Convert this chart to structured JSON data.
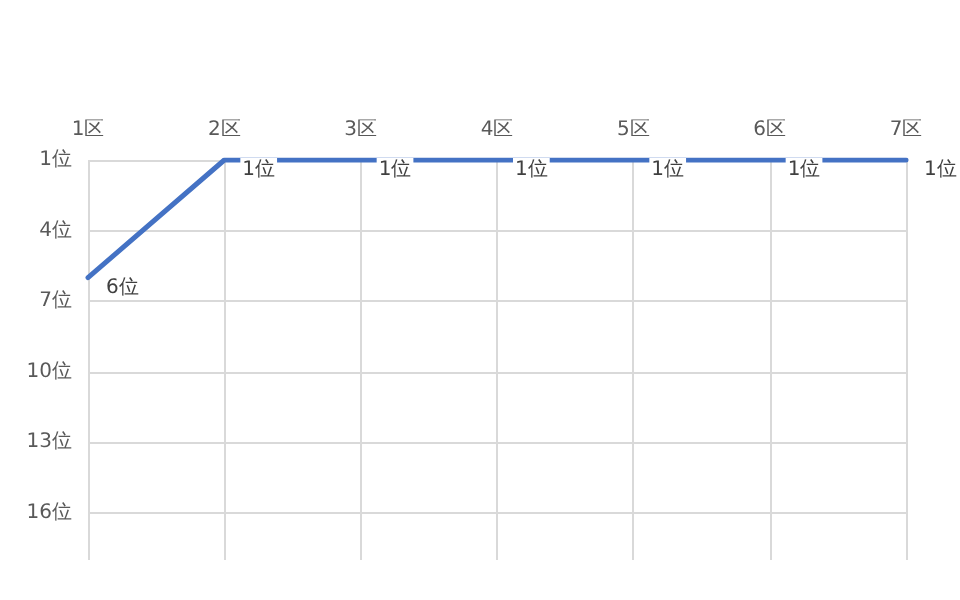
{
  "chart_data": {
    "type": "line",
    "categories": [
      "1区",
      "2区",
      "3区",
      "4区",
      "5区",
      "6区",
      "7区"
    ],
    "series": [
      {
        "color": "#4472c4",
        "values": [
          6,
          1,
          1,
          1,
          1,
          1,
          1
        ],
        "value_labels": [
          "6位",
          "1位",
          "1位",
          "1位",
          "1位",
          "1位",
          "1位"
        ]
      }
    ],
    "ylim": [
      18,
      1
    ],
    "yticks": [
      {
        "value": 1,
        "label": "1位"
      },
      {
        "value": 4,
        "label": "4位"
      },
      {
        "value": 7,
        "label": "7位"
      },
      {
        "value": 10,
        "label": "10位"
      },
      {
        "value": 13,
        "label": "13位"
      },
      {
        "value": 16,
        "label": "16位"
      }
    ],
    "grid": true,
    "marker": "none",
    "line_style": "solid"
  }
}
